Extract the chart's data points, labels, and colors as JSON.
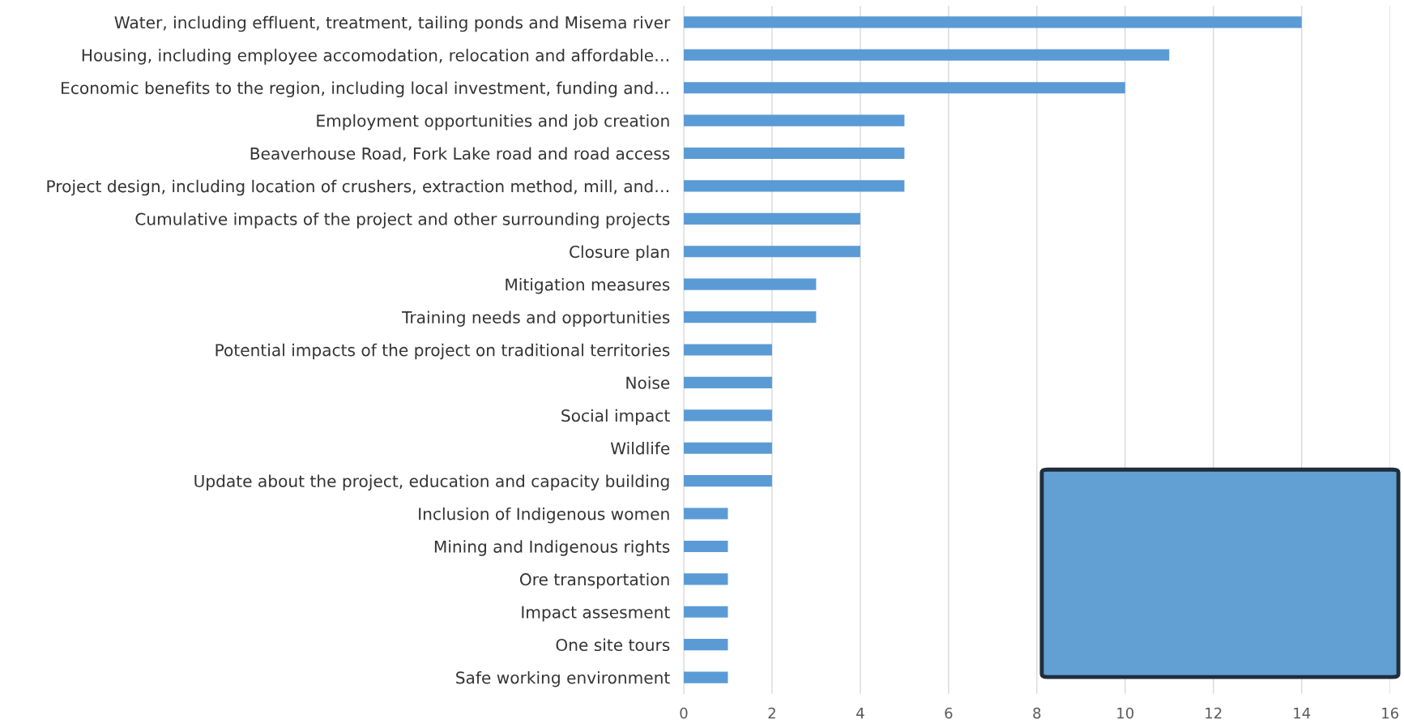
{
  "chart_data": {
    "type": "bar",
    "orientation": "horizontal",
    "categories": [
      "Water, including effluent, treatment, tailing ponds and Misema river",
      "Housing, including employee accomodation, relocation and affordable…",
      "Economic benefits to the region, including local investment, funding and…",
      "Employment opportunities and job creation",
      "Beaverhouse Road, Fork Lake road and road access",
      "Project design, including location of crushers, extraction method, mill, and…",
      "Cumulative impacts of the project and other surrounding projects",
      "Closure plan",
      "Mitigation measures",
      "Training needs and opportunities",
      "Potential impacts of the project on traditional territories",
      "Noise",
      "Social impact",
      "Wildlife",
      "Update about the project, education and capacity building",
      "Inclusion of Indigenous women",
      "Mining and Indigenous rights",
      "Ore transportation",
      "Impact assesment",
      "One site tours",
      "Safe working environment"
    ],
    "values": [
      14,
      11,
      10,
      5,
      5,
      5,
      4,
      4,
      3,
      3,
      2,
      2,
      2,
      2,
      2,
      1,
      1,
      1,
      1,
      1,
      1
    ],
    "color": "#5b9bd5",
    "xlim": [
      0,
      16
    ],
    "xticks": [
      0,
      2,
      4,
      6,
      8,
      10,
      12,
      14,
      16
    ],
    "grid": "x"
  }
}
